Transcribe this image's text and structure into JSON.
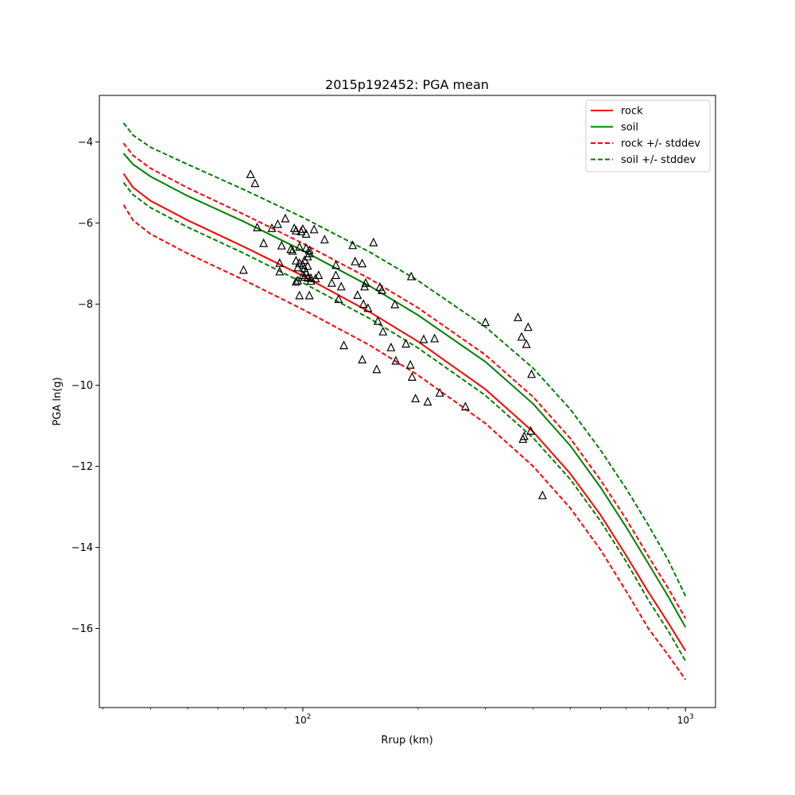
{
  "chart_data": {
    "type": "line",
    "title": "2015p192452: PGA mean",
    "xlabel": "Rrup (km)",
    "ylabel": "PGA ln(g)",
    "xscale": "log",
    "xlim": [
      29.4,
      1198
    ],
    "ylim": [
      -17.95,
      -2.85
    ],
    "xticks": [
      {
        "value": 100,
        "base": "10",
        "exp": "2"
      },
      {
        "value": 1000,
        "base": "10",
        "exp": "3"
      }
    ],
    "yticks": [
      -16,
      -14,
      -12,
      -10,
      -8,
      -6,
      -4
    ],
    "grid": false,
    "legend_position": "top-right",
    "series": [
      {
        "name": "rock",
        "style": "solid",
        "color": "#ff0000",
        "in_legend": true,
        "x": [
          34,
          36,
          40,
          50,
          70,
          100,
          150,
          200,
          300,
          400,
          500,
          600,
          700,
          800,
          900,
          1000
        ],
        "y": [
          -4.78,
          -5.12,
          -5.45,
          -5.93,
          -6.58,
          -7.3,
          -8.2,
          -8.92,
          -10.1,
          -11.15,
          -12.18,
          -13.2,
          -14.2,
          -15.1,
          -15.85,
          -16.55
        ]
      },
      {
        "name": "soil",
        "style": "solid",
        "color": "#008000",
        "in_legend": true,
        "x": [
          34,
          36,
          40,
          50,
          70,
          100,
          150,
          200,
          300,
          400,
          500,
          600,
          700,
          800,
          900,
          1000
        ],
        "y": [
          -4.28,
          -4.55,
          -4.85,
          -5.33,
          -5.96,
          -6.68,
          -7.56,
          -8.27,
          -9.42,
          -10.46,
          -11.49,
          -12.52,
          -13.5,
          -14.4,
          -15.2,
          -15.97
        ]
      },
      {
        "name": "rock +/- stddev",
        "style": "dashed",
        "color": "#ff0000",
        "in_legend": true,
        "x": [
          34,
          36,
          40,
          50,
          70,
          100,
          150,
          200,
          300,
          400,
          500,
          600,
          700,
          800,
          900,
          1000
        ],
        "y": [
          -4.03,
          -4.33,
          -4.65,
          -5.13,
          -5.78,
          -6.5,
          -7.38,
          -8.09,
          -9.25,
          -10.29,
          -11.31,
          -12.34,
          -13.3,
          -14.22,
          -15.0,
          -15.75
        ]
      },
      {
        "name": "",
        "style": "dashed",
        "color": "#ff0000",
        "in_legend": false,
        "x": [
          34,
          36,
          40,
          50,
          70,
          100,
          150,
          200,
          300,
          400,
          500,
          600,
          700,
          800,
          900,
          1000
        ],
        "y": [
          -5.55,
          -5.93,
          -6.27,
          -6.75,
          -7.4,
          -8.13,
          -9.02,
          -9.75,
          -10.94,
          -12.0,
          -13.03,
          -14.06,
          -15.08,
          -16.0,
          -16.65,
          -17.26
        ]
      },
      {
        "name": "soil +/- stddev",
        "style": "dashed",
        "color": "#008000",
        "in_legend": true,
        "x": [
          34,
          36,
          40,
          50,
          70,
          100,
          150,
          200,
          300,
          400,
          500,
          600,
          700,
          800,
          900,
          1000
        ],
        "y": [
          -3.53,
          -3.83,
          -4.13,
          -4.55,
          -5.17,
          -5.86,
          -6.72,
          -7.42,
          -8.56,
          -9.58,
          -10.59,
          -11.6,
          -12.55,
          -13.45,
          -14.3,
          -15.2
        ]
      },
      {
        "name": "",
        "style": "dashed",
        "color": "#008000",
        "in_legend": false,
        "x": [
          34,
          36,
          40,
          50,
          70,
          100,
          150,
          200,
          300,
          400,
          500,
          600,
          700,
          800,
          900,
          1000
        ],
        "y": [
          -5.0,
          -5.3,
          -5.62,
          -6.1,
          -6.74,
          -7.47,
          -8.36,
          -9.08,
          -10.25,
          -11.3,
          -12.32,
          -13.35,
          -14.35,
          -15.3,
          -16.05,
          -16.8
        ]
      }
    ],
    "observations": {
      "marker": "triangle",
      "color": "#000000",
      "points": [
        [
          73,
          -4.8
        ],
        [
          75,
          -5.02
        ],
        [
          76,
          -6.11
        ],
        [
          79,
          -6.5
        ],
        [
          70,
          -7.16
        ],
        [
          83,
          -6.13
        ],
        [
          86,
          -6.03
        ],
        [
          87,
          -6.99
        ],
        [
          87,
          -7.2
        ],
        [
          88,
          -6.56
        ],
        [
          90,
          -5.89
        ],
        [
          93,
          -6.65
        ],
        [
          94,
          -6.69
        ],
        [
          95,
          -6.13
        ],
        [
          96,
          -6.19
        ],
        [
          96,
          -6.93
        ],
        [
          96,
          -7.45
        ],
        [
          97,
          -7.42
        ],
        [
          97,
          -7.1
        ],
        [
          98,
          -7.79
        ],
        [
          98,
          -6.99
        ],
        [
          98,
          -6.59
        ],
        [
          99,
          -6.21
        ],
        [
          100,
          -6.15
        ],
        [
          100,
          -7.03
        ],
        [
          100,
          -7.29
        ],
        [
          101,
          -7.33
        ],
        [
          101,
          -6.92
        ],
        [
          101,
          -7.12
        ],
        [
          102,
          -6.62
        ],
        [
          102,
          -6.27
        ],
        [
          102,
          -7.22
        ],
        [
          103,
          -7.35
        ],
        [
          103,
          -6.83
        ],
        [
          103,
          -7.06
        ],
        [
          104,
          -6.67
        ],
        [
          104,
          -7.79
        ],
        [
          104,
          -6.75
        ],
        [
          105,
          -7.36
        ],
        [
          105,
          -7.43
        ],
        [
          107,
          -6.16
        ],
        [
          108,
          -7.37
        ],
        [
          110,
          -7.29
        ],
        [
          114,
          -6.41
        ],
        [
          119,
          -7.48
        ],
        [
          122,
          -7.04
        ],
        [
          122,
          -7.29
        ],
        [
          124,
          -7.88
        ],
        [
          126,
          -7.57
        ],
        [
          128,
          -9.02
        ],
        [
          135,
          -6.55
        ],
        [
          137,
          -6.95
        ],
        [
          139,
          -7.78
        ],
        [
          143,
          -7.0
        ],
        [
          143,
          -9.37
        ],
        [
          144,
          -8.0
        ],
        [
          145,
          -7.57
        ],
        [
          146,
          -7.48
        ],
        [
          148,
          -8.1
        ],
        [
          153,
          -6.48
        ],
        [
          156,
          -9.61
        ],
        [
          157,
          -8.42
        ],
        [
          159,
          -7.58
        ],
        [
          161,
          -7.66
        ],
        [
          162,
          -8.68
        ],
        [
          170,
          -9.07
        ],
        [
          174,
          -8.01
        ],
        [
          175,
          -9.4
        ],
        [
          186,
          -8.98
        ],
        [
          191,
          -9.5
        ],
        [
          192,
          -7.32
        ],
        [
          193,
          -9.8
        ],
        [
          197,
          -10.33
        ],
        [
          207,
          -8.87
        ],
        [
          212,
          -10.41
        ],
        [
          221,
          -8.85
        ],
        [
          228,
          -10.19
        ],
        [
          266,
          -10.53
        ],
        [
          300,
          -8.45
        ],
        [
          365,
          -8.33
        ],
        [
          373,
          -8.81
        ],
        [
          376,
          -11.33
        ],
        [
          379,
          -11.26
        ],
        [
          384,
          -8.99
        ],
        [
          388,
          -8.57
        ],
        [
          396,
          -9.73
        ],
        [
          394,
          -11.13
        ],
        [
          423,
          -12.72
        ]
      ]
    }
  }
}
